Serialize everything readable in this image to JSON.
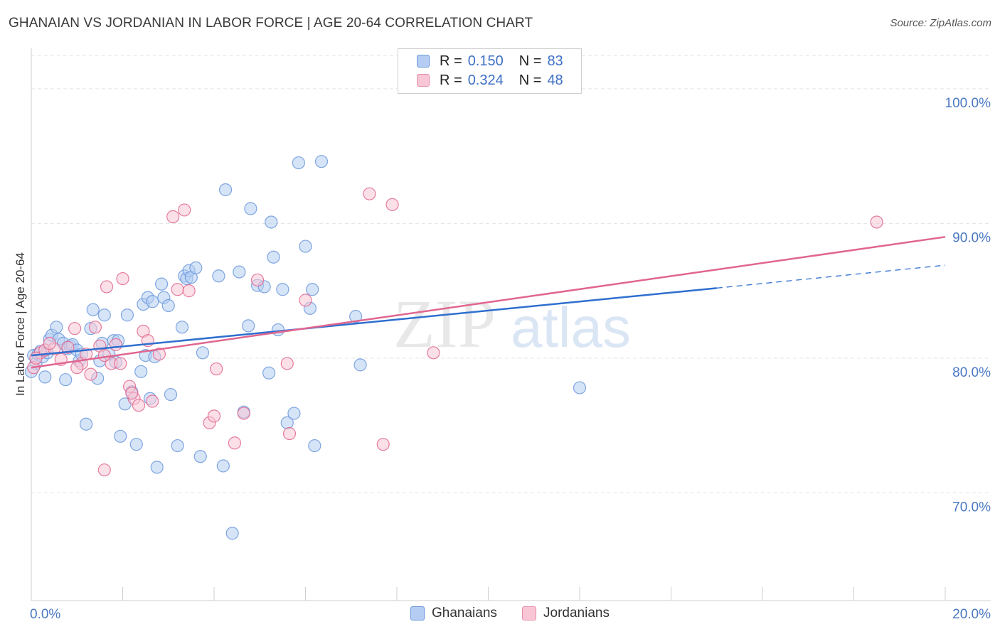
{
  "header": {
    "title": "GHANAIAN VS JORDANIAN IN LABOR FORCE | AGE 20-64 CORRELATION CHART",
    "source": "Source: ZipAtlas.com"
  },
  "watermark": {
    "zip": "ZIP",
    "atlas": "atlas"
  },
  "legend": {
    "rows": [
      {
        "r_label": "R =",
        "r_value": "0.150",
        "n_label": "N =",
        "n_value": "83",
        "fill": "#b5cdf2",
        "stroke": "#6b98dc"
      },
      {
        "r_label": "R =",
        "r_value": "0.324",
        "n_label": "N =",
        "n_value": "48",
        "fill": "#f9c6d6",
        "stroke": "#e78fac"
      }
    ]
  },
  "bottom_legend": [
    "Ghanaians",
    "Jordanians"
  ],
  "chart_data": {
    "type": "scatter",
    "title": "GHANAIAN VS JORDANIAN IN LABOR FORCE | AGE 20-64 CORRELATION CHART",
    "xlabel": "",
    "ylabel": "In Labor Force | Age 20-64",
    "xlim": [
      0,
      20
    ],
    "ylim": [
      62,
      103
    ],
    "x_tick_labels": [
      "0.0%",
      "20.0%"
    ],
    "y_ticks": [
      70,
      80,
      90,
      100
    ],
    "y_tick_labels": [
      "70.0%",
      "80.0%",
      "90.0%",
      "100.0%"
    ],
    "grid": "horizontal dashed",
    "legend_position": "top-center",
    "series": [
      {
        "name": "Ghanaians",
        "color": "#6b98dc",
        "fill": "#b5cdf2",
        "trend": {
          "x": [
            0,
            15
          ],
          "y": [
            80.2,
            85.2
          ],
          "dashed_extension": {
            "x": [
              15,
              20
            ],
            "y": [
              85.2,
              86.9
            ]
          }
        },
        "points": [
          [
            0.05,
            80.2
          ],
          [
            0.1,
            79.6
          ],
          [
            0.15,
            80.3
          ],
          [
            0.2,
            80.5
          ],
          [
            0.25,
            80.1
          ],
          [
            0.3,
            78.6
          ],
          [
            0.35,
            80.4
          ],
          [
            0.4,
            81.4
          ],
          [
            0.45,
            81.7
          ],
          [
            0.55,
            82.3
          ],
          [
            0.6,
            81.4
          ],
          [
            0.7,
            81.1
          ],
          [
            0.75,
            78.4
          ],
          [
            0.8,
            80.7
          ],
          [
            0.85,
            80.9
          ],
          [
            0.9,
            81.0
          ],
          [
            1.0,
            80.6
          ],
          [
            1.05,
            79.8
          ],
          [
            1.1,
            80.3
          ],
          [
            1.2,
            75.1
          ],
          [
            1.3,
            82.2
          ],
          [
            1.35,
            83.6
          ],
          [
            1.45,
            78.5
          ],
          [
            1.5,
            79.8
          ],
          [
            1.55,
            81.1
          ],
          [
            1.6,
            83.2
          ],
          [
            1.7,
            80.3
          ],
          [
            1.8,
            81.3
          ],
          [
            1.85,
            79.7
          ],
          [
            1.9,
            81.3
          ],
          [
            1.95,
            74.2
          ],
          [
            2.05,
            76.6
          ],
          [
            2.1,
            83.2
          ],
          [
            2.2,
            77.5
          ],
          [
            2.3,
            73.6
          ],
          [
            2.4,
            79.0
          ],
          [
            2.45,
            84.0
          ],
          [
            2.5,
            80.2
          ],
          [
            2.55,
            84.5
          ],
          [
            2.6,
            77.0
          ],
          [
            2.65,
            84.2
          ],
          [
            2.7,
            80.1
          ],
          [
            2.75,
            71.9
          ],
          [
            2.85,
            85.5
          ],
          [
            2.9,
            84.5
          ],
          [
            3.0,
            83.9
          ],
          [
            3.05,
            77.3
          ],
          [
            3.2,
            73.5
          ],
          [
            3.3,
            82.3
          ],
          [
            3.35,
            86.1
          ],
          [
            3.4,
            85.9
          ],
          [
            3.45,
            86.5
          ],
          [
            3.5,
            86.0
          ],
          [
            3.6,
            86.7
          ],
          [
            3.7,
            72.7
          ],
          [
            3.75,
            80.4
          ],
          [
            4.1,
            86.1
          ],
          [
            4.2,
            72.0
          ],
          [
            4.25,
            92.5
          ],
          [
            4.4,
            67.0
          ],
          [
            4.55,
            86.4
          ],
          [
            4.65,
            76.0
          ],
          [
            4.75,
            82.4
          ],
          [
            4.8,
            91.1
          ],
          [
            4.95,
            85.4
          ],
          [
            5.1,
            85.3
          ],
          [
            5.2,
            78.9
          ],
          [
            5.25,
            90.1
          ],
          [
            5.3,
            87.5
          ],
          [
            5.4,
            82.1
          ],
          [
            5.5,
            85.1
          ],
          [
            5.6,
            75.2
          ],
          [
            5.75,
            75.9
          ],
          [
            5.85,
            94.5
          ],
          [
            6.0,
            88.3
          ],
          [
            6.1,
            83.7
          ],
          [
            6.15,
            85.1
          ],
          [
            6.2,
            73.5
          ],
          [
            6.35,
            94.6
          ],
          [
            7.2,
            79.5
          ],
          [
            7.1,
            83.1
          ],
          [
            12.0,
            77.8
          ],
          [
            0.0,
            79.0
          ]
        ]
      },
      {
        "name": "Jordanians",
        "color": "#e0668f",
        "fill": "#f9c6d6",
        "trend": {
          "x": [
            0,
            20
          ],
          "y": [
            79.3,
            89.0
          ]
        },
        "points": [
          [
            0.05,
            79.3
          ],
          [
            0.2,
            80.4
          ],
          [
            0.3,
            80.6
          ],
          [
            0.5,
            80.7
          ],
          [
            0.65,
            79.9
          ],
          [
            0.8,
            80.8
          ],
          [
            0.95,
            82.2
          ],
          [
            1.1,
            79.6
          ],
          [
            1.2,
            80.3
          ],
          [
            1.3,
            78.8
          ],
          [
            1.4,
            82.3
          ],
          [
            1.5,
            80.9
          ],
          [
            1.6,
            71.7
          ],
          [
            1.65,
            85.3
          ],
          [
            1.75,
            79.6
          ],
          [
            1.85,
            81.0
          ],
          [
            1.95,
            79.6
          ],
          [
            2.0,
            85.9
          ],
          [
            2.15,
            77.9
          ],
          [
            2.25,
            77.0
          ],
          [
            2.35,
            76.5
          ],
          [
            2.45,
            82.0
          ],
          [
            2.55,
            81.3
          ],
          [
            2.65,
            76.8
          ],
          [
            2.8,
            80.3
          ],
          [
            3.1,
            90.5
          ],
          [
            3.2,
            85.1
          ],
          [
            3.35,
            91.0
          ],
          [
            3.45,
            85.0
          ],
          [
            3.9,
            75.2
          ],
          [
            4.0,
            75.7
          ],
          [
            4.05,
            79.2
          ],
          [
            4.45,
            73.7
          ],
          [
            4.65,
            75.9
          ],
          [
            4.95,
            85.8
          ],
          [
            5.6,
            79.6
          ],
          [
            5.65,
            74.4
          ],
          [
            6.0,
            84.3
          ],
          [
            7.4,
            92.2
          ],
          [
            7.7,
            73.6
          ],
          [
            7.9,
            91.4
          ],
          [
            8.8,
            80.4
          ],
          [
            18.5,
            90.1
          ],
          [
            0.4,
            81.1
          ],
          [
            1.0,
            79.3
          ],
          [
            1.6,
            80.2
          ],
          [
            0.1,
            80.0
          ],
          [
            2.2,
            77.4
          ]
        ]
      }
    ]
  }
}
